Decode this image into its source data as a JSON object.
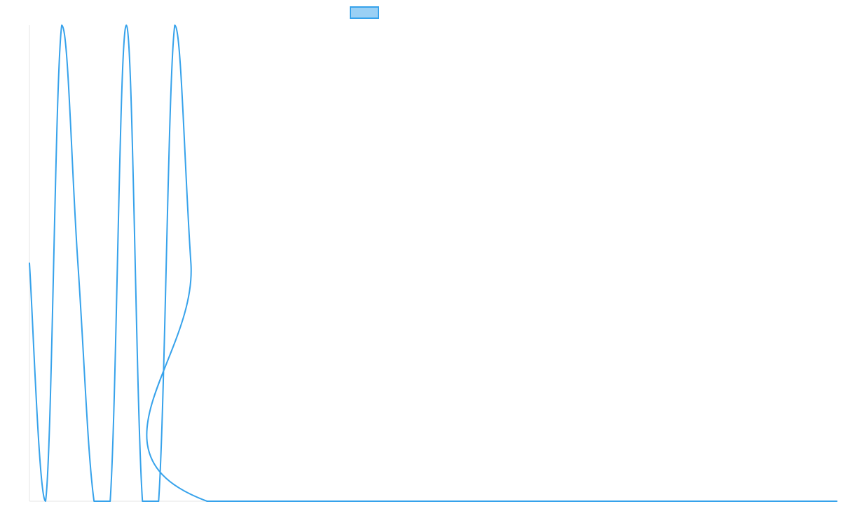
{
  "chart_data": {
    "type": "line",
    "title": "",
    "xlabel": "",
    "ylabel": "",
    "legend": {
      "position": "top-center"
    },
    "grid": false,
    "xlim": [
      0,
      100
    ],
    "ylim": [
      0,
      1
    ],
    "series": [
      {
        "line_color": "#36a2eb",
        "fill_color": "#9ad0f5",
        "points": [
          [
            0,
            0.5
          ],
          [
            2,
            0
          ],
          [
            4,
            1
          ],
          [
            6,
            0.5
          ],
          [
            8,
            0
          ],
          [
            10,
            0
          ],
          [
            12,
            1
          ],
          [
            14,
            0
          ],
          [
            16,
            0
          ],
          [
            18,
            1
          ],
          [
            20,
            0.5
          ],
          [
            22,
            0
          ],
          [
            100,
            0
          ]
        ]
      }
    ]
  }
}
